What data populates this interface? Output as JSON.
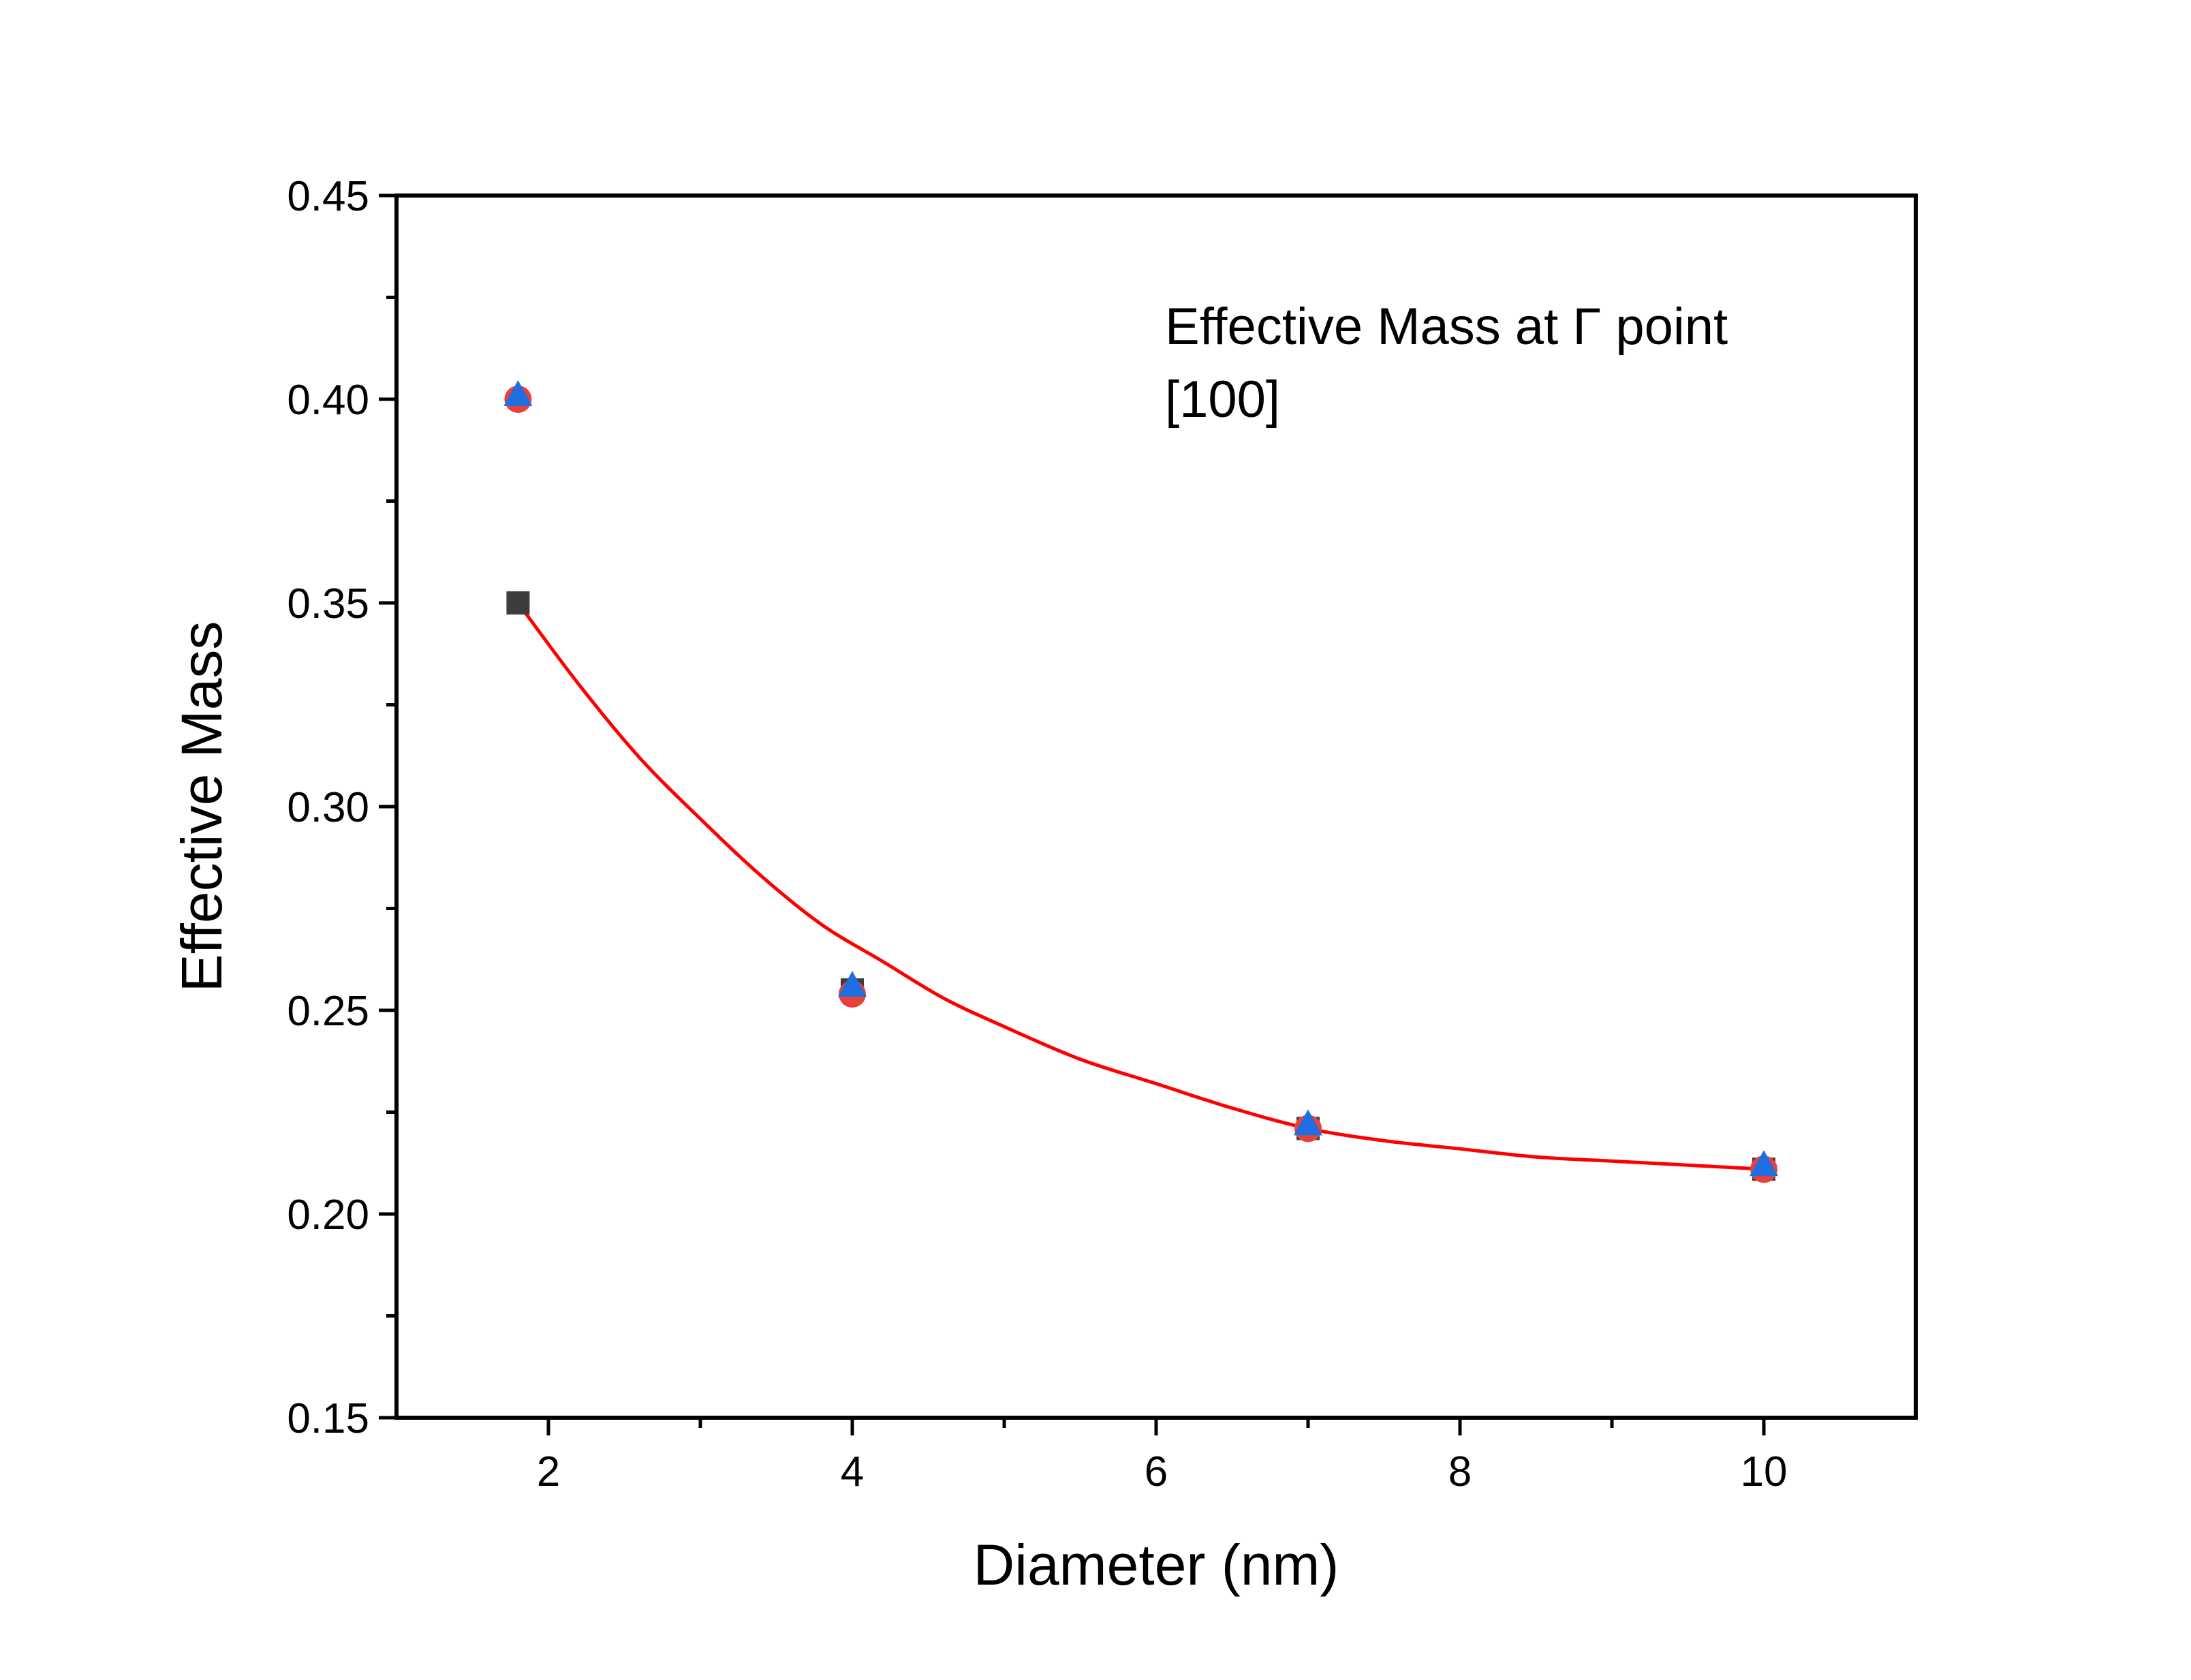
{
  "chart_data": {
    "type": "scatter",
    "xlabel": "Diameter (nm)",
    "ylabel": "Effective Mass",
    "xlim": [
      1,
      11
    ],
    "ylim": [
      0.15,
      0.45
    ],
    "x_ticks": [
      2,
      4,
      6,
      8,
      10
    ],
    "x_tick_labels": [
      "2",
      "4",
      "6",
      "8",
      "10"
    ],
    "y_ticks": [
      0.15,
      0.2,
      0.25,
      0.3,
      0.35,
      0.4,
      0.45
    ],
    "y_tick_labels": [
      "0.15",
      "0.20",
      "0.25",
      "0.30",
      "0.35",
      "0.40",
      "0.45"
    ],
    "annotations": [
      "Effective Mass at Γ point",
      "[100]"
    ],
    "legend": "none",
    "grid": false,
    "series": [
      {
        "marker": "square",
        "color": "#3d3d3d",
        "x": [
          1.8,
          4,
          7,
          10
        ],
        "y": [
          0.35,
          0.255,
          0.221,
          0.211
        ]
      },
      {
        "marker": "circle",
        "color": "#e8413a",
        "x": [
          1.8,
          4,
          7,
          10
        ],
        "y": [
          0.4,
          0.254,
          0.221,
          0.211
        ]
      },
      {
        "marker": "triangle",
        "color": "#1f6fe0",
        "x": [
          1.8,
          4,
          7,
          10
        ],
        "y": [
          0.401,
          0.256,
          0.222,
          0.212
        ]
      }
    ],
    "fit_curve": {
      "type": "line",
      "color": "#ff0000",
      "x": [
        1.8,
        2.2,
        2.6,
        3.0,
        3.4,
        3.8,
        4.2,
        4.6,
        5.0,
        5.5,
        6.0,
        6.5,
        7.0,
        7.5,
        8.0,
        8.5,
        9.0,
        9.5,
        10.0
      ],
      "y": [
        0.35,
        0.33,
        0.312,
        0.297,
        0.283,
        0.271,
        0.262,
        0.253,
        0.246,
        0.238,
        0.232,
        0.226,
        0.221,
        0.218,
        0.216,
        0.214,
        0.213,
        0.212,
        0.211
      ]
    }
  }
}
